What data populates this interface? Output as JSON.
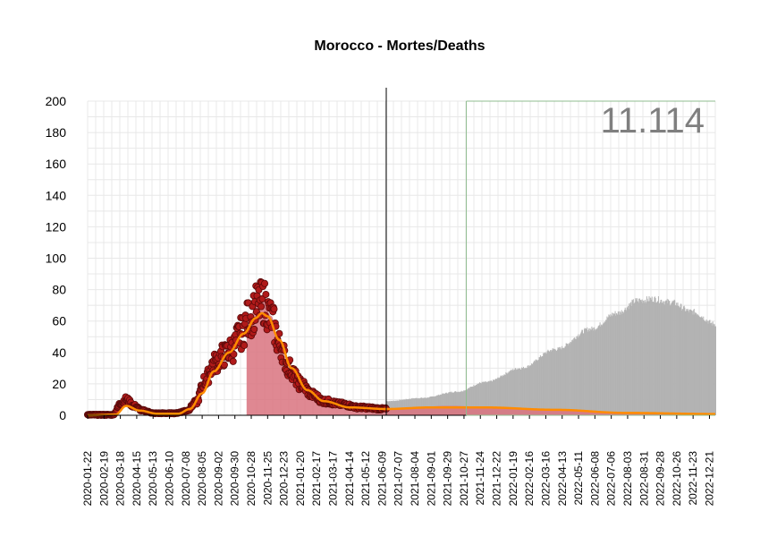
{
  "chart_data": {
    "type": "area",
    "title": "Morocco - Mortes/Deaths",
    "big_number": "11.114",
    "ylim": [
      0,
      200
    ],
    "y_ticks": [
      0,
      20,
      40,
      60,
      80,
      100,
      120,
      140,
      160,
      180,
      200
    ],
    "x_range": [
      "2020-01-22",
      "2022-12-31"
    ],
    "x_ticks": [
      "2020-01-22",
      "2020-02-19",
      "2020-03-18",
      "2020-04-15",
      "2020-05-13",
      "2020-06-10",
      "2020-07-08",
      "2020-08-05",
      "2020-09-02",
      "2020-09-30",
      "2020-10-28",
      "2020-11-25",
      "2020-12-23",
      "2021-01-20",
      "2021-02-17",
      "2021-03-17",
      "2021-04-14",
      "2021-05-12",
      "2021-06-09",
      "2021-07-07",
      "2021-08-04",
      "2021-09-01",
      "2021-09-29",
      "2021-10-27",
      "2021-11-24",
      "2021-12-22",
      "2022-01-19",
      "2022-02-16",
      "2022-03-16",
      "2022-04-13",
      "2022-05-11",
      "2022-06-08",
      "2022-07-06",
      "2022-08-03",
      "2022-08-31",
      "2022-09-28",
      "2022-10-26",
      "2022-11-23",
      "2022-12-21"
    ],
    "grid": true,
    "today_line": "2021-06-16",
    "green_box_start": "2021-10-31",
    "green_line_y": 200,
    "colors": {
      "observed_points": "#b01a1a",
      "observed_point_edge": "#5a0a0a",
      "observed_area": "#d9737f",
      "smooth_line": "#ff8c00",
      "forecast_area": "#b3b3b3",
      "forecast_lower": "#d9737f",
      "today_line": "#000000",
      "green_box": "#8fbc8f"
    },
    "observed_key_points": [
      {
        "x": "2020-01-22",
        "y": 0
      },
      {
        "x": "2020-03-05",
        "y": 0
      },
      {
        "x": "2020-03-20",
        "y": 8
      },
      {
        "x": "2020-03-28",
        "y": 10
      },
      {
        "x": "2020-04-10",
        "y": 6
      },
      {
        "x": "2020-04-25",
        "y": 3
      },
      {
        "x": "2020-05-15",
        "y": 1
      },
      {
        "x": "2020-06-20",
        "y": 1
      },
      {
        "x": "2020-07-10",
        "y": 3
      },
      {
        "x": "2020-07-25",
        "y": 8
      },
      {
        "x": "2020-08-10",
        "y": 22
      },
      {
        "x": "2020-08-25",
        "y": 33
      },
      {
        "x": "2020-09-10",
        "y": 38
      },
      {
        "x": "2020-09-25",
        "y": 42
      },
      {
        "x": "2020-10-10",
        "y": 52
      },
      {
        "x": "2020-10-25",
        "y": 62
      },
      {
        "x": "2020-11-08",
        "y": 70
      },
      {
        "x": "2020-11-18",
        "y": 72
      },
      {
        "x": "2020-12-01",
        "y": 62
      },
      {
        "x": "2020-12-15",
        "y": 45
      },
      {
        "x": "2021-01-01",
        "y": 30
      },
      {
        "x": "2021-01-20",
        "y": 20
      },
      {
        "x": "2021-02-10",
        "y": 13
      },
      {
        "x": "2021-03-01",
        "y": 9
      },
      {
        "x": "2021-04-01",
        "y": 7
      },
      {
        "x": "2021-05-01",
        "y": 5
      },
      {
        "x": "2021-06-16",
        "y": 4
      }
    ],
    "observed_area_start": "2020-10-20",
    "smooth_key_points": [
      {
        "x": "2020-01-22",
        "y": 0
      },
      {
        "x": "2020-03-10",
        "y": 0.5
      },
      {
        "x": "2020-03-28",
        "y": 6
      },
      {
        "x": "2020-04-20",
        "y": 3
      },
      {
        "x": "2020-05-20",
        "y": 1
      },
      {
        "x": "2020-06-25",
        "y": 1
      },
      {
        "x": "2020-07-15",
        "y": 4
      },
      {
        "x": "2020-08-05",
        "y": 14
      },
      {
        "x": "2020-08-25",
        "y": 28
      },
      {
        "x": "2020-09-20",
        "y": 40
      },
      {
        "x": "2020-10-15",
        "y": 52
      },
      {
        "x": "2020-11-05",
        "y": 62
      },
      {
        "x": "2020-11-15",
        "y": 65
      },
      {
        "x": "2020-11-25",
        "y": 63
      },
      {
        "x": "2020-12-15",
        "y": 48
      },
      {
        "x": "2021-01-05",
        "y": 30
      },
      {
        "x": "2021-02-01",
        "y": 16
      },
      {
        "x": "2021-03-01",
        "y": 9
      },
      {
        "x": "2021-04-15",
        "y": 5
      },
      {
        "x": "2021-06-16",
        "y": 4
      },
      {
        "x": "2021-09-01",
        "y": 5
      },
      {
        "x": "2021-12-01",
        "y": 5
      },
      {
        "x": "2022-04-01",
        "y": 3.5
      },
      {
        "x": "2022-08-01",
        "y": 1.5
      },
      {
        "x": "2022-12-31",
        "y": 0.8
      }
    ],
    "forecast_key_points": [
      {
        "x": "2021-06-16",
        "y": 9
      },
      {
        "x": "2021-08-15",
        "y": 11
      },
      {
        "x": "2021-10-15",
        "y": 15
      },
      {
        "x": "2021-12-01",
        "y": 21
      },
      {
        "x": "2022-02-01",
        "y": 30
      },
      {
        "x": "2022-04-01",
        "y": 42
      },
      {
        "x": "2022-06-01",
        "y": 55
      },
      {
        "x": "2022-07-15",
        "y": 65
      },
      {
        "x": "2022-08-20",
        "y": 73
      },
      {
        "x": "2022-09-15",
        "y": 74
      },
      {
        "x": "2022-10-15",
        "y": 72
      },
      {
        "x": "2022-11-20",
        "y": 66
      },
      {
        "x": "2022-12-31",
        "y": 58
      }
    ],
    "forecast_lower_key_points": [
      {
        "x": "2021-06-16",
        "y": 4
      },
      {
        "x": "2021-10-01",
        "y": 6
      },
      {
        "x": "2022-01-01",
        "y": 5
      },
      {
        "x": "2022-05-01",
        "y": 3
      },
      {
        "x": "2022-09-01",
        "y": 1.5
      },
      {
        "x": "2022-12-31",
        "y": 1
      }
    ]
  }
}
